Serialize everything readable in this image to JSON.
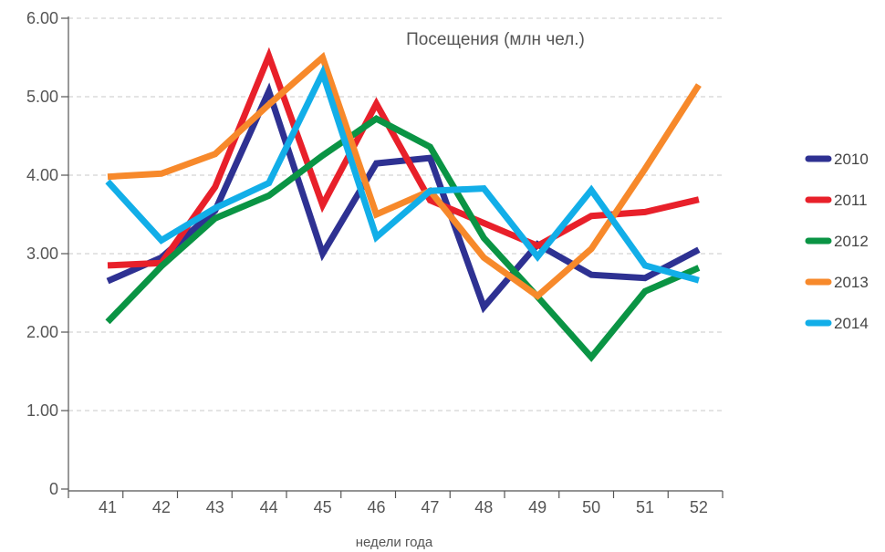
{
  "chart_data": {
    "type": "line",
    "title": "Посещения (млн чел.)",
    "xlabel": "недели года",
    "ylabel": "",
    "ylim": [
      0,
      6
    ],
    "yticks": [
      "0",
      "1.00",
      "2.00",
      "3.00",
      "4.00",
      "5.00",
      "6.00"
    ],
    "categories": [
      "41",
      "42",
      "43",
      "44",
      "45",
      "46",
      "47",
      "48",
      "49",
      "50",
      "51",
      "52"
    ],
    "grid": "horizontal dashed",
    "legend_position": "right",
    "series": [
      {
        "name": "2010",
        "color": "#2e3192",
        "values": [
          2.65,
          2.95,
          3.55,
          5.07,
          3.0,
          4.15,
          4.22,
          2.32,
          3.12,
          2.73,
          2.69,
          3.05
        ]
      },
      {
        "name": "2011",
        "color": "#e8202a",
        "values": [
          2.85,
          2.88,
          3.85,
          5.52,
          3.62,
          4.91,
          3.68,
          3.39,
          3.1,
          3.48,
          3.53,
          3.69
        ]
      },
      {
        "name": "2012",
        "color": "#0a9444",
        "values": [
          2.13,
          2.84,
          3.45,
          3.74,
          4.25,
          4.72,
          4.36,
          3.2,
          2.45,
          1.68,
          2.52,
          2.82
        ]
      },
      {
        "name": "2013",
        "color": "#f7892b",
        "values": [
          3.98,
          4.02,
          4.27,
          4.9,
          5.5,
          3.5,
          3.8,
          2.95,
          2.46,
          3.06,
          4.08,
          5.15
        ]
      },
      {
        "name": "2014",
        "color": "#12aee8",
        "values": [
          3.92,
          3.17,
          3.58,
          3.9,
          5.3,
          3.21,
          3.8,
          3.83,
          2.96,
          3.81,
          2.85,
          2.66
        ]
      }
    ]
  }
}
